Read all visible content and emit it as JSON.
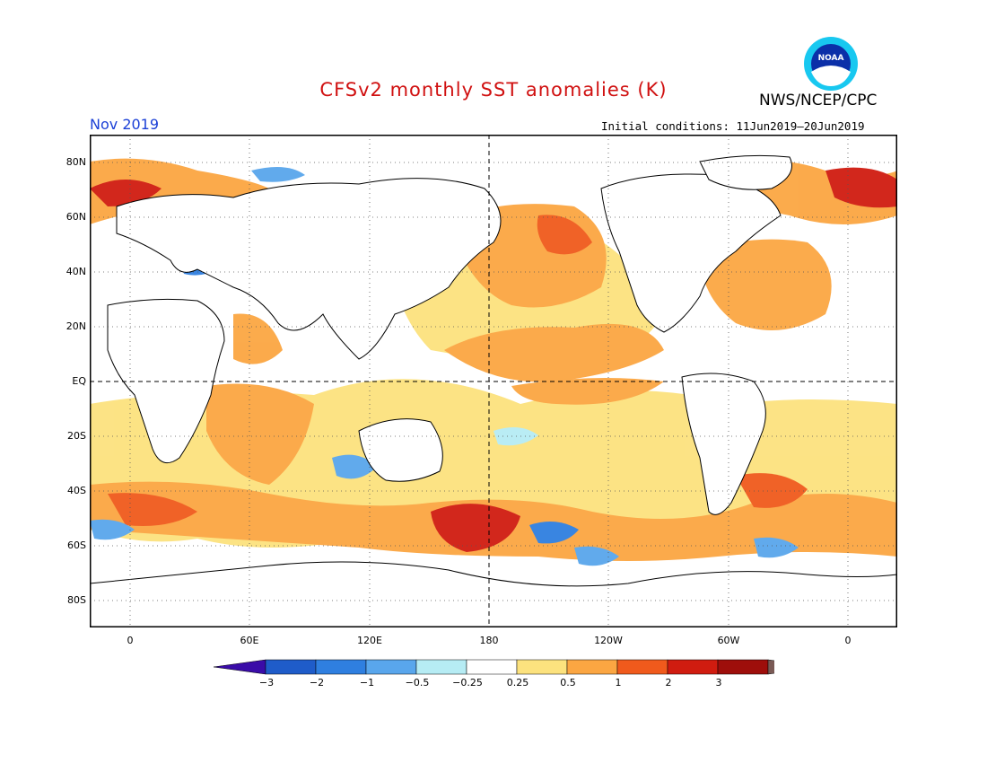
{
  "title": "CFSv2 monthly SST anomalies (K)",
  "agency": "NWS/NCEP/CPC",
  "logo_text": "NOAA",
  "valid_month": "Nov 2019",
  "initial_conditions": "Initial conditions: 11Jun2019–20Jun2019",
  "lat_labels": [
    "80N",
    "60N",
    "40N",
    "20N",
    "EQ",
    "20S",
    "40S",
    "60S",
    "80S"
  ],
  "lon_labels": [
    "0",
    "60E",
    "120E",
    "180",
    "120W",
    "60W",
    "0"
  ],
  "colorbar": {
    "labels": [
      "−3",
      "−2",
      "−1",
      "−0.5",
      "−0.25",
      "0.25",
      "0.5",
      "1",
      "2",
      "3"
    ],
    "colors": [
      "#3a0ca8",
      "#1f5cc9",
      "#2f7fe0",
      "#59a6ec",
      "#b6ecf4",
      "#ffffff",
      "#fce27e",
      "#fba642",
      "#f05a1c",
      "#d01c10",
      "#9e0e0b",
      "#7a5a55"
    ],
    "units": "K"
  }
}
